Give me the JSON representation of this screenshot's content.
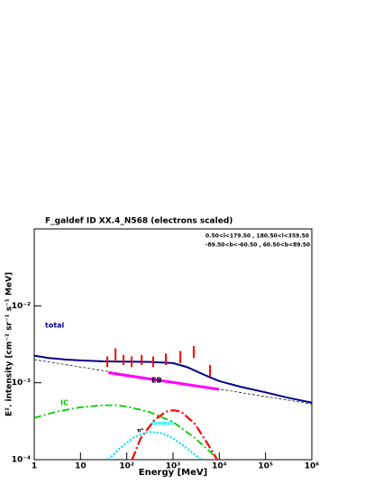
{
  "chart_data": {
    "type": "line",
    "title": "F_galdef ID XX.4_N568 (electrons scaled)",
    "annotations": [
      "0.50<l<179.50 , 180.50<l<359.50",
      "-89.50<b<-60.50 , 60.50<b<89.50"
    ],
    "x_label": "Energy [MeV]",
    "y_label": "E². intensity [cm⁻² sr⁻¹ s⁻¹ MeV]",
    "log_x": true,
    "log_y": true,
    "xlim": [
      1,
      1000000
    ],
    "ylim": [
      0.0001,
      0.1
    ],
    "xticks": [
      1,
      10,
      {
        "value": 100,
        "label": "10²"
      },
      {
        "value": 1000,
        "label": "10³"
      },
      {
        "value": 10000,
        "label": "10⁴"
      },
      {
        "value": 100000,
        "label": "10⁵"
      },
      {
        "value": 1000000,
        "label": "10⁶"
      }
    ],
    "yticks": [
      {
        "value": 0.0001,
        "label": "10⁻⁴"
      },
      {
        "value": 0.001,
        "label": "10⁻³"
      },
      {
        "value": 0.01,
        "label": "10⁻²"
      }
    ],
    "series": [
      {
        "name": "total",
        "color": "#00008b",
        "x": [
          1,
          2,
          5,
          10,
          30,
          100,
          300,
          1000,
          2000,
          5000,
          10000,
          30000,
          100000,
          300000,
          1000000
        ],
        "values": [
          0.00225,
          0.0021,
          0.002,
          0.00195,
          0.0019,
          0.00188,
          0.00187,
          0.0018,
          0.0016,
          0.00125,
          0.00105,
          0.00088,
          0.00075,
          0.00064,
          0.00055
        ]
      },
      {
        "color": "#000000",
        "x": [
          1,
          1000000
        ],
        "values": [
          0.002,
          0.00053
        ]
      },
      {
        "name": "EB",
        "color": "#ff00ff",
        "x": [
          40,
          10000
        ],
        "values": [
          0.00135,
          0.00082
        ]
      },
      {
        "name": "IC",
        "color": "#00cc00",
        "x": [
          1,
          3,
          10,
          30,
          60,
          100,
          300,
          1000,
          3000,
          6000,
          10000
        ],
        "values": [
          0.00035,
          0.00042,
          0.00048,
          0.00051,
          0.00051,
          0.00049,
          0.00042,
          0.00031,
          0.00019,
          0.00013,
          0.0001
        ]
      },
      {
        "name": "π⁰",
        "color": "#ff0000",
        "x": [
          130,
          200,
          400,
          700,
          1000,
          1500,
          3000,
          6000,
          9000
        ],
        "values": [
          0.0001,
          0.00019,
          0.00033,
          0.00042,
          0.00044,
          0.00042,
          0.00029,
          0.00015,
          0.0001
        ]
      },
      {
        "name": "bremss",
        "color": "#00e5ee",
        "x": [
          40,
          70,
          150,
          300,
          600,
          1000,
          2000,
          4000
        ],
        "values": [
          0.0001,
          0.00014,
          0.0002,
          0.00023,
          0.00022,
          0.00019,
          0.00014,
          0.0001
        ]
      },
      {
        "color": "#ff0000",
        "x": [
          38,
          57,
          85,
          127,
          210,
          372,
          700,
          1440,
          2800,
          6300
        ],
        "low": [
          0.0016,
          0.0019,
          0.0017,
          0.0016,
          0.0017,
          0.0016,
          0.0017,
          0.0018,
          0.0021,
          0.0012
        ],
        "high": [
          0.0022,
          0.0028,
          0.0023,
          0.0022,
          0.0023,
          0.0022,
          0.0024,
          0.0026,
          0.003,
          0.0017
        ]
      }
    ]
  }
}
